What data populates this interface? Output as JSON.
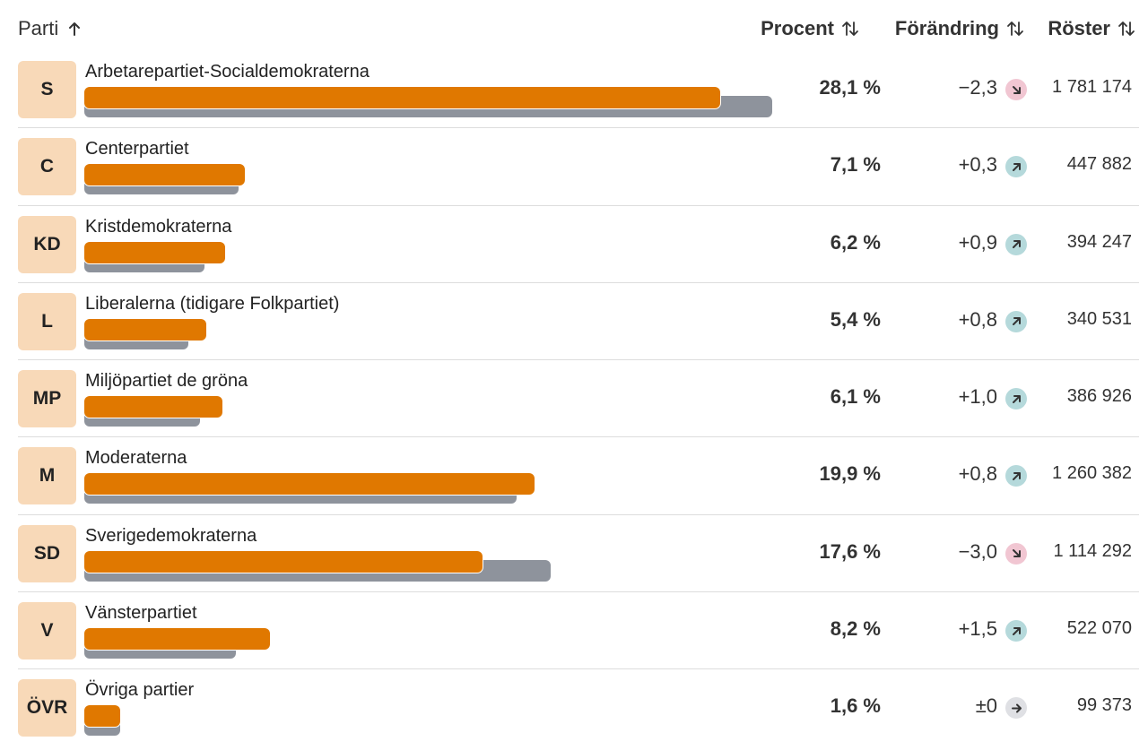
{
  "header": {
    "party_label": "Parti",
    "percent_label": "Procent",
    "change_label": "Förändring",
    "votes_label": "Röster"
  },
  "colors": {
    "badge_bg": "#f8d9b8",
    "bar_current": "#e07800",
    "bar_previous": "#8e939c",
    "down_icon_bg": "#f1c6d2",
    "up_icon_bg": "#b5d9db",
    "neutral_icon_bg": "#dfe0e4"
  },
  "chart_data": {
    "type": "bar",
    "series": [
      {
        "name": "current",
        "values": [
          28.1,
          7.1,
          6.2,
          5.4,
          6.1,
          19.9,
          17.6,
          8.2,
          1.6
        ]
      },
      {
        "name": "previous",
        "values": [
          30.4,
          6.8,
          5.3,
          4.6,
          5.1,
          19.1,
          20.6,
          6.7,
          1.6
        ]
      }
    ],
    "rows": [
      {
        "abbr": "S",
        "name": "Arbetarepartiet-Socialdemokraterna",
        "percent": 28.1,
        "percent_text": "28,1 %",
        "prev": 30.4,
        "change": -2.3,
        "change_text": "−2,3",
        "direction": "down",
        "votes": "1 781 174"
      },
      {
        "abbr": "C",
        "name": "Centerpartiet",
        "percent": 7.1,
        "percent_text": "7,1 %",
        "prev": 6.8,
        "change": 0.3,
        "change_text": "+0,3",
        "direction": "up",
        "votes": "447 882"
      },
      {
        "abbr": "KD",
        "name": "Kristdemokraterna",
        "percent": 6.2,
        "percent_text": "6,2 %",
        "prev": 5.3,
        "change": 0.9,
        "change_text": "+0,9",
        "direction": "up",
        "votes": "394 247"
      },
      {
        "abbr": "L",
        "name": "Liberalerna (tidigare Folkpartiet)",
        "percent": 5.4,
        "percent_text": "5,4 %",
        "prev": 4.6,
        "change": 0.8,
        "change_text": "+0,8",
        "direction": "up",
        "votes": "340 531"
      },
      {
        "abbr": "MP",
        "name": "Miljöpartiet de gröna",
        "percent": 6.1,
        "percent_text": "6,1 %",
        "prev": 5.1,
        "change": 1.0,
        "change_text": "+1,0",
        "direction": "up",
        "votes": "386 926"
      },
      {
        "abbr": "M",
        "name": "Moderaterna",
        "percent": 19.9,
        "percent_text": "19,9 %",
        "prev": 19.1,
        "change": 0.8,
        "change_text": "+0,8",
        "direction": "up",
        "votes": "1 260 382"
      },
      {
        "abbr": "SD",
        "name": "Sverigedemokraterna",
        "percent": 17.6,
        "percent_text": "17,6 %",
        "prev": 20.6,
        "change": -3.0,
        "change_text": "−3,0",
        "direction": "down",
        "votes": "1 114 292"
      },
      {
        "abbr": "V",
        "name": "Vänsterpartiet",
        "percent": 8.2,
        "percent_text": "8,2 %",
        "prev": 6.7,
        "change": 1.5,
        "change_text": "+1,5",
        "direction": "up",
        "votes": "522 070"
      },
      {
        "abbr": "ÖVR",
        "name": "Övriga partier",
        "percent": 1.6,
        "percent_text": "1,6 %",
        "prev": 1.6,
        "change": 0,
        "change_text": "±0",
        "direction": "neutral",
        "votes": "99 373"
      }
    ],
    "xlim": [
      0,
      30.5
    ]
  }
}
